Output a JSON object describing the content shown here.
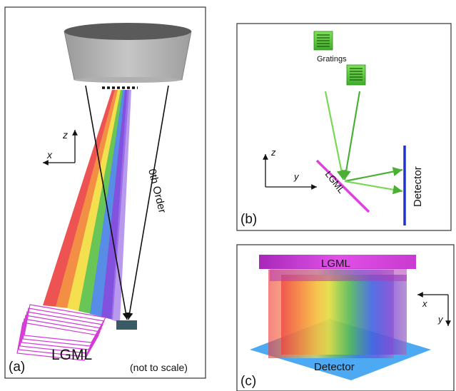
{
  "panel_a": {
    "label": "(a)",
    "lgml": "LGML",
    "zero_order": "0th Order",
    "scale_note": "(not to scale)",
    "axis_z": "z",
    "axis_x": "x"
  },
  "panel_b": {
    "label": "(b)",
    "gratings": "Gratings",
    "lgml": "LGML",
    "detector": "Detector",
    "axis_z": "z",
    "axis_y": "y"
  },
  "panel_c": {
    "label": "(c)",
    "lgml": "LGML",
    "detector": "Detector",
    "axis_x": "x",
    "axis_y": "y"
  },
  "colors": {
    "grating_green": "#5ccf3a",
    "lgml_magenta": "#e040e0",
    "detector_blue": "#2233cc",
    "detector_tile": "#3a5a66",
    "detector_plane": "#3aa0ef"
  }
}
